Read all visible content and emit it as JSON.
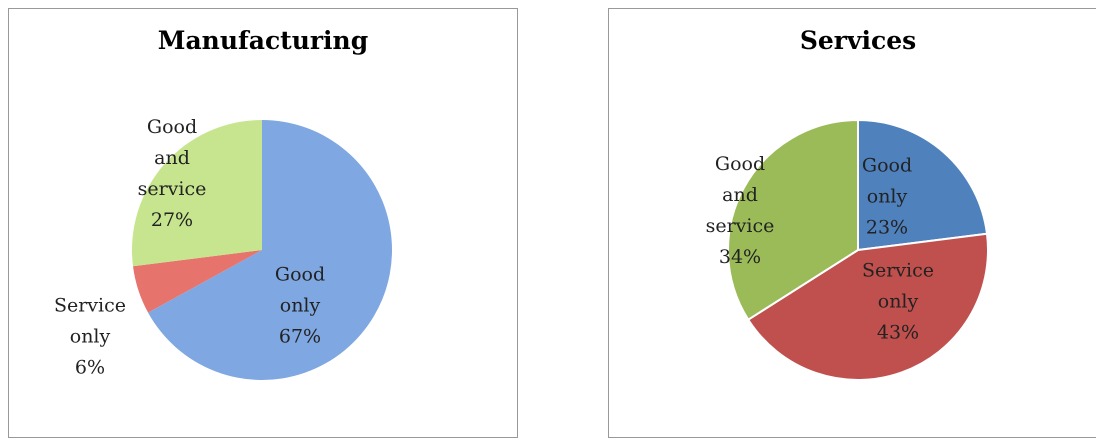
{
  "chart_data": [
    {
      "type": "pie",
      "title": "Manufacturing",
      "categories": [
        "Good only",
        "Service only",
        "Good and service"
      ],
      "values": [
        67,
        6,
        27
      ],
      "value_labels": [
        "67%",
        "6%",
        "27%"
      ],
      "colors": [
        "#7fa7e2",
        "#e7736d",
        "#c7e58e"
      ]
    },
    {
      "type": "pie",
      "title": "Services",
      "categories": [
        "Good only",
        "Service only",
        "Good and service"
      ],
      "values": [
        23,
        43,
        34
      ],
      "value_labels": [
        "23%",
        "43%",
        "34%"
      ],
      "colors": [
        "#4f81bd",
        "#c0504d",
        "#9bbb59"
      ]
    }
  ]
}
